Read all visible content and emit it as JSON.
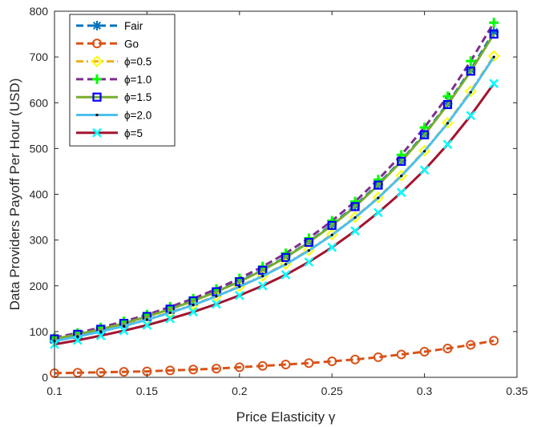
{
  "chart_data": {
    "type": "line",
    "xlabel": "Price Elasticity γ",
    "ylabel": "Data Providers Payoff Per Hour (USD)",
    "xlim": [
      0.1,
      0.35
    ],
    "ylim": [
      0,
      800
    ],
    "xticks": [
      0.1,
      0.15,
      0.2,
      0.25,
      0.3,
      0.35
    ],
    "xtick_labels": [
      "0.1",
      "0.15",
      "0.2",
      "0.25",
      "0.3",
      "0.35"
    ],
    "yticks": [
      0,
      100,
      200,
      300,
      400,
      500,
      600,
      700,
      800
    ],
    "ytick_labels": [
      "0",
      "100",
      "200",
      "300",
      "400",
      "500",
      "600",
      "700",
      "800"
    ],
    "grid": false,
    "legend_position": "top-left",
    "x": [
      0.1,
      0.1125,
      0.125,
      0.1375,
      0.15,
      0.1625,
      0.175,
      0.1875,
      0.2,
      0.2125,
      0.225,
      0.2375,
      0.25,
      0.2625,
      0.275,
      0.2875,
      0.3,
      0.3125,
      0.325,
      0.3375
    ],
    "series": [
      {
        "name": "Fair",
        "color": "#0072BD",
        "dash": "dash",
        "marker": "asterisk",
        "values": [
          84,
          94,
          106,
          119,
          134,
          150,
          168,
          188,
          210,
          235,
          263,
          296,
          334,
          375,
          422,
          474,
          532,
          598,
          672,
          755
        ]
      },
      {
        "name": "Go",
        "color": "#D95319",
        "dash": "dash",
        "marker": "circle",
        "values": [
          9,
          10,
          11,
          12,
          13,
          15,
          17,
          19,
          22,
          25,
          28,
          31,
          35,
          39,
          44,
          50,
          56,
          63,
          71,
          80
        ]
      },
      {
        "name": "ϕ=0.5",
        "color": "#EDB120",
        "markerColor": "#FFFF00",
        "dash": "dashdot",
        "marker": "diamond",
        "values": [
          80,
          90,
          101,
          113,
          127,
          142,
          159,
          178,
          199,
          222,
          248,
          278,
          312,
          350,
          393,
          441,
          495,
          556,
          625,
          702
        ]
      },
      {
        "name": "ϕ=1.0",
        "color": "#7E2F8E",
        "markerColor": "#00FF00",
        "dash": "dash",
        "marker": "plus",
        "values": [
          87,
          97,
          109,
          122,
          137,
          154,
          172,
          193,
          216,
          242,
          271,
          304,
          342,
          384,
          432,
          486,
          546,
          614,
          691,
          775
        ]
      },
      {
        "name": "ϕ=1.5",
        "color": "#77AC30",
        "markerColor": "#0000FF",
        "dash": "solid",
        "marker": "square",
        "values": [
          84,
          94,
          105,
          118,
          133,
          149,
          167,
          187,
          209,
          234,
          262,
          295,
          332,
          373,
          420,
          472,
          530,
          596,
          669,
          750
        ]
      },
      {
        "name": "ϕ=2.0",
        "color": "#4DBEEE",
        "markerColor": "#000000",
        "dash": "solid",
        "marker": "dot",
        "values": [
          79,
          89,
          100,
          112,
          126,
          141,
          158,
          177,
          198,
          221,
          247,
          277,
          311,
          349,
          392,
          440,
          494,
          555,
          623,
          700
        ]
      },
      {
        "name": "ϕ=5",
        "color": "#A2142F",
        "markerColor": "#00FFFF",
        "dash": "solid",
        "marker": "x",
        "values": [
          72,
          81,
          91,
          102,
          114,
          128,
          143,
          160,
          179,
          200,
          224,
          252,
          284,
          320,
          360,
          404,
          453,
          509,
          572,
          642
        ]
      }
    ]
  }
}
